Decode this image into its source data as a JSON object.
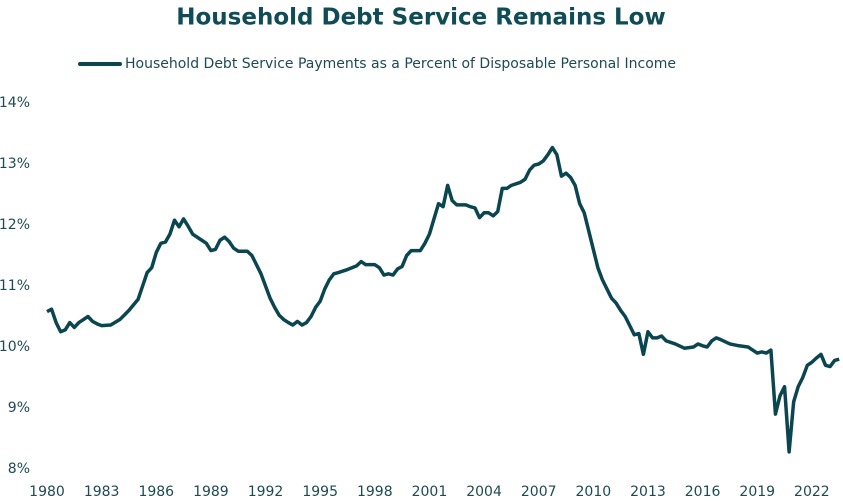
{
  "chart_data": {
    "type": "line",
    "title": "Household Debt Service Remains Low",
    "series": [
      {
        "name": "Household Debt Service Payments as a Percent of Disposable Personal Income",
        "color": "#0b4650",
        "x": [
          1980.0,
          1980.25,
          1980.5,
          1980.75,
          1981.0,
          1981.25,
          1981.5,
          1981.75,
          1982.0,
          1982.25,
          1982.5,
          1982.75,
          1983.0,
          1983.5,
          1984.0,
          1984.5,
          1985.0,
          1985.25,
          1985.5,
          1985.75,
          1986.0,
          1986.25,
          1986.5,
          1986.75,
          1987.0,
          1987.25,
          1987.5,
          1987.75,
          1988.0,
          1988.5,
          1988.75,
          1989.0,
          1989.25,
          1989.5,
          1989.75,
          1990.0,
          1990.25,
          1990.5,
          1991.0,
          1991.25,
          1991.5,
          1991.75,
          1992.0,
          1992.25,
          1992.5,
          1992.75,
          1993.0,
          1993.25,
          1993.5,
          1993.75,
          1994.0,
          1994.25,
          1994.5,
          1994.75,
          1995.0,
          1995.25,
          1995.5,
          1995.75,
          1996.0,
          1996.5,
          1997.0,
          1997.25,
          1997.5,
          1998.0,
          1998.25,
          1998.5,
          1998.75,
          1999.0,
          1999.25,
          1999.5,
          1999.75,
          2000.0,
          2000.5,
          2000.75,
          2001.0,
          2001.25,
          2001.5,
          2001.75,
          2002.0,
          2002.25,
          2002.5,
          2003.0,
          2003.25,
          2003.5,
          2003.75,
          2004.0,
          2004.25,
          2004.5,
          2004.75,
          2005.0,
          2005.25,
          2005.5,
          2006.0,
          2006.25,
          2006.5,
          2006.75,
          2007.0,
          2007.25,
          2007.5,
          2007.75,
          2008.0,
          2008.25,
          2008.5,
          2008.75,
          2009.0,
          2009.25,
          2009.5,
          2009.75,
          2010.0,
          2010.25,
          2010.5,
          2010.75,
          2011.0,
          2011.25,
          2011.5,
          2011.75,
          2012.0,
          2012.25,
          2012.5,
          2012.75,
          2013.0,
          2013.25,
          2013.5,
          2013.75,
          2014.0,
          2014.5,
          2015.0,
          2015.5,
          2015.75,
          2016.0,
          2016.25,
          2016.5,
          2016.75,
          2017.0,
          2017.5,
          2018.0,
          2018.5,
          2018.75,
          2019.0,
          2019.25,
          2019.5,
          2019.75,
          2020.0,
          2020.25,
          2020.5,
          2020.75,
          2021.0,
          2021.25,
          2021.5,
          2021.75,
          2022.0,
          2022.25,
          2022.5,
          2022.75,
          2023.0,
          2023.25,
          2023.5
        ],
        "values": [
          10.58,
          10.62,
          10.4,
          10.25,
          10.28,
          10.4,
          10.32,
          10.4,
          10.45,
          10.5,
          10.42,
          10.38,
          10.35,
          10.36,
          10.45,
          10.6,
          10.78,
          11.0,
          11.22,
          11.3,
          11.55,
          11.7,
          11.72,
          11.85,
          12.08,
          11.97,
          12.1,
          11.98,
          11.85,
          11.75,
          11.7,
          11.58,
          11.6,
          11.75,
          11.8,
          11.73,
          11.62,
          11.57,
          11.57,
          11.5,
          11.35,
          11.2,
          11.0,
          10.8,
          10.65,
          10.52,
          10.45,
          10.4,
          10.36,
          10.42,
          10.36,
          10.4,
          10.5,
          10.65,
          10.75,
          10.95,
          11.1,
          11.2,
          11.22,
          11.27,
          11.33,
          11.4,
          11.35,
          11.35,
          11.3,
          11.18,
          11.2,
          11.18,
          11.28,
          11.32,
          11.5,
          11.58,
          11.58,
          11.7,
          11.85,
          12.1,
          12.35,
          12.3,
          12.65,
          12.4,
          12.33,
          12.33,
          12.3,
          12.28,
          12.12,
          12.2,
          12.2,
          12.15,
          12.22,
          12.6,
          12.6,
          12.65,
          12.7,
          12.75,
          12.9,
          12.98,
          13.0,
          13.05,
          13.15,
          13.27,
          13.15,
          12.8,
          12.85,
          12.78,
          12.65,
          12.35,
          12.2,
          11.9,
          11.6,
          11.3,
          11.1,
          10.95,
          10.8,
          10.72,
          10.6,
          10.5,
          10.35,
          10.2,
          10.22,
          9.88,
          10.25,
          10.15,
          10.15,
          10.18,
          10.1,
          10.05,
          9.98,
          10.0,
          10.05,
          10.02,
          10.0,
          10.1,
          10.15,
          10.12,
          10.05,
          10.02,
          10.0,
          9.95,
          9.9,
          9.92,
          9.9,
          9.95,
          8.9,
          9.2,
          9.35,
          8.28,
          9.1,
          9.35,
          9.5,
          9.7,
          9.75,
          9.82,
          9.88,
          9.7,
          9.68,
          9.78,
          9.8
        ]
      }
    ],
    "xlim": [
      1980,
      2023.6
    ],
    "xticks": [
      1980,
      1983,
      1986,
      1989,
      1992,
      1995,
      1998,
      2001,
      2004,
      2007,
      2010,
      2013,
      2016,
      2019,
      2022
    ],
    "ylim": [
      8,
      14
    ],
    "yticks": [
      {
        "value": 8,
        "label": "8%"
      },
      {
        "value": 9,
        "label": "9%"
      },
      {
        "value": 10,
        "label": "10%"
      },
      {
        "value": 11,
        "label": "11%"
      },
      {
        "value": 12,
        "label": "12%"
      },
      {
        "value": 13,
        "label": "13%"
      },
      {
        "value": 14,
        "label": "14%"
      }
    ],
    "grid": false,
    "legend": "top"
  }
}
